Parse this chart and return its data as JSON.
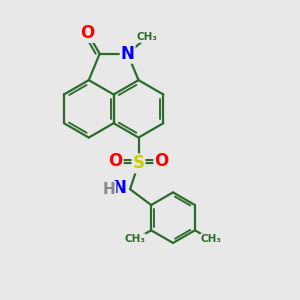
{
  "bg": "#e8e8e8",
  "bond_color": "#2d6b2d",
  "bond_lw": 1.6,
  "atom_colors": {
    "N": "#0000ff",
    "O": "#ff0000",
    "S": "#cccc00",
    "C": "#2d6b2d",
    "H": "#888888"
  },
  "xlim": [
    -2.8,
    3.5
  ],
  "ylim": [
    -4.8,
    3.0
  ],
  "figsize": [
    3.0,
    3.0
  ],
  "dpi": 100
}
